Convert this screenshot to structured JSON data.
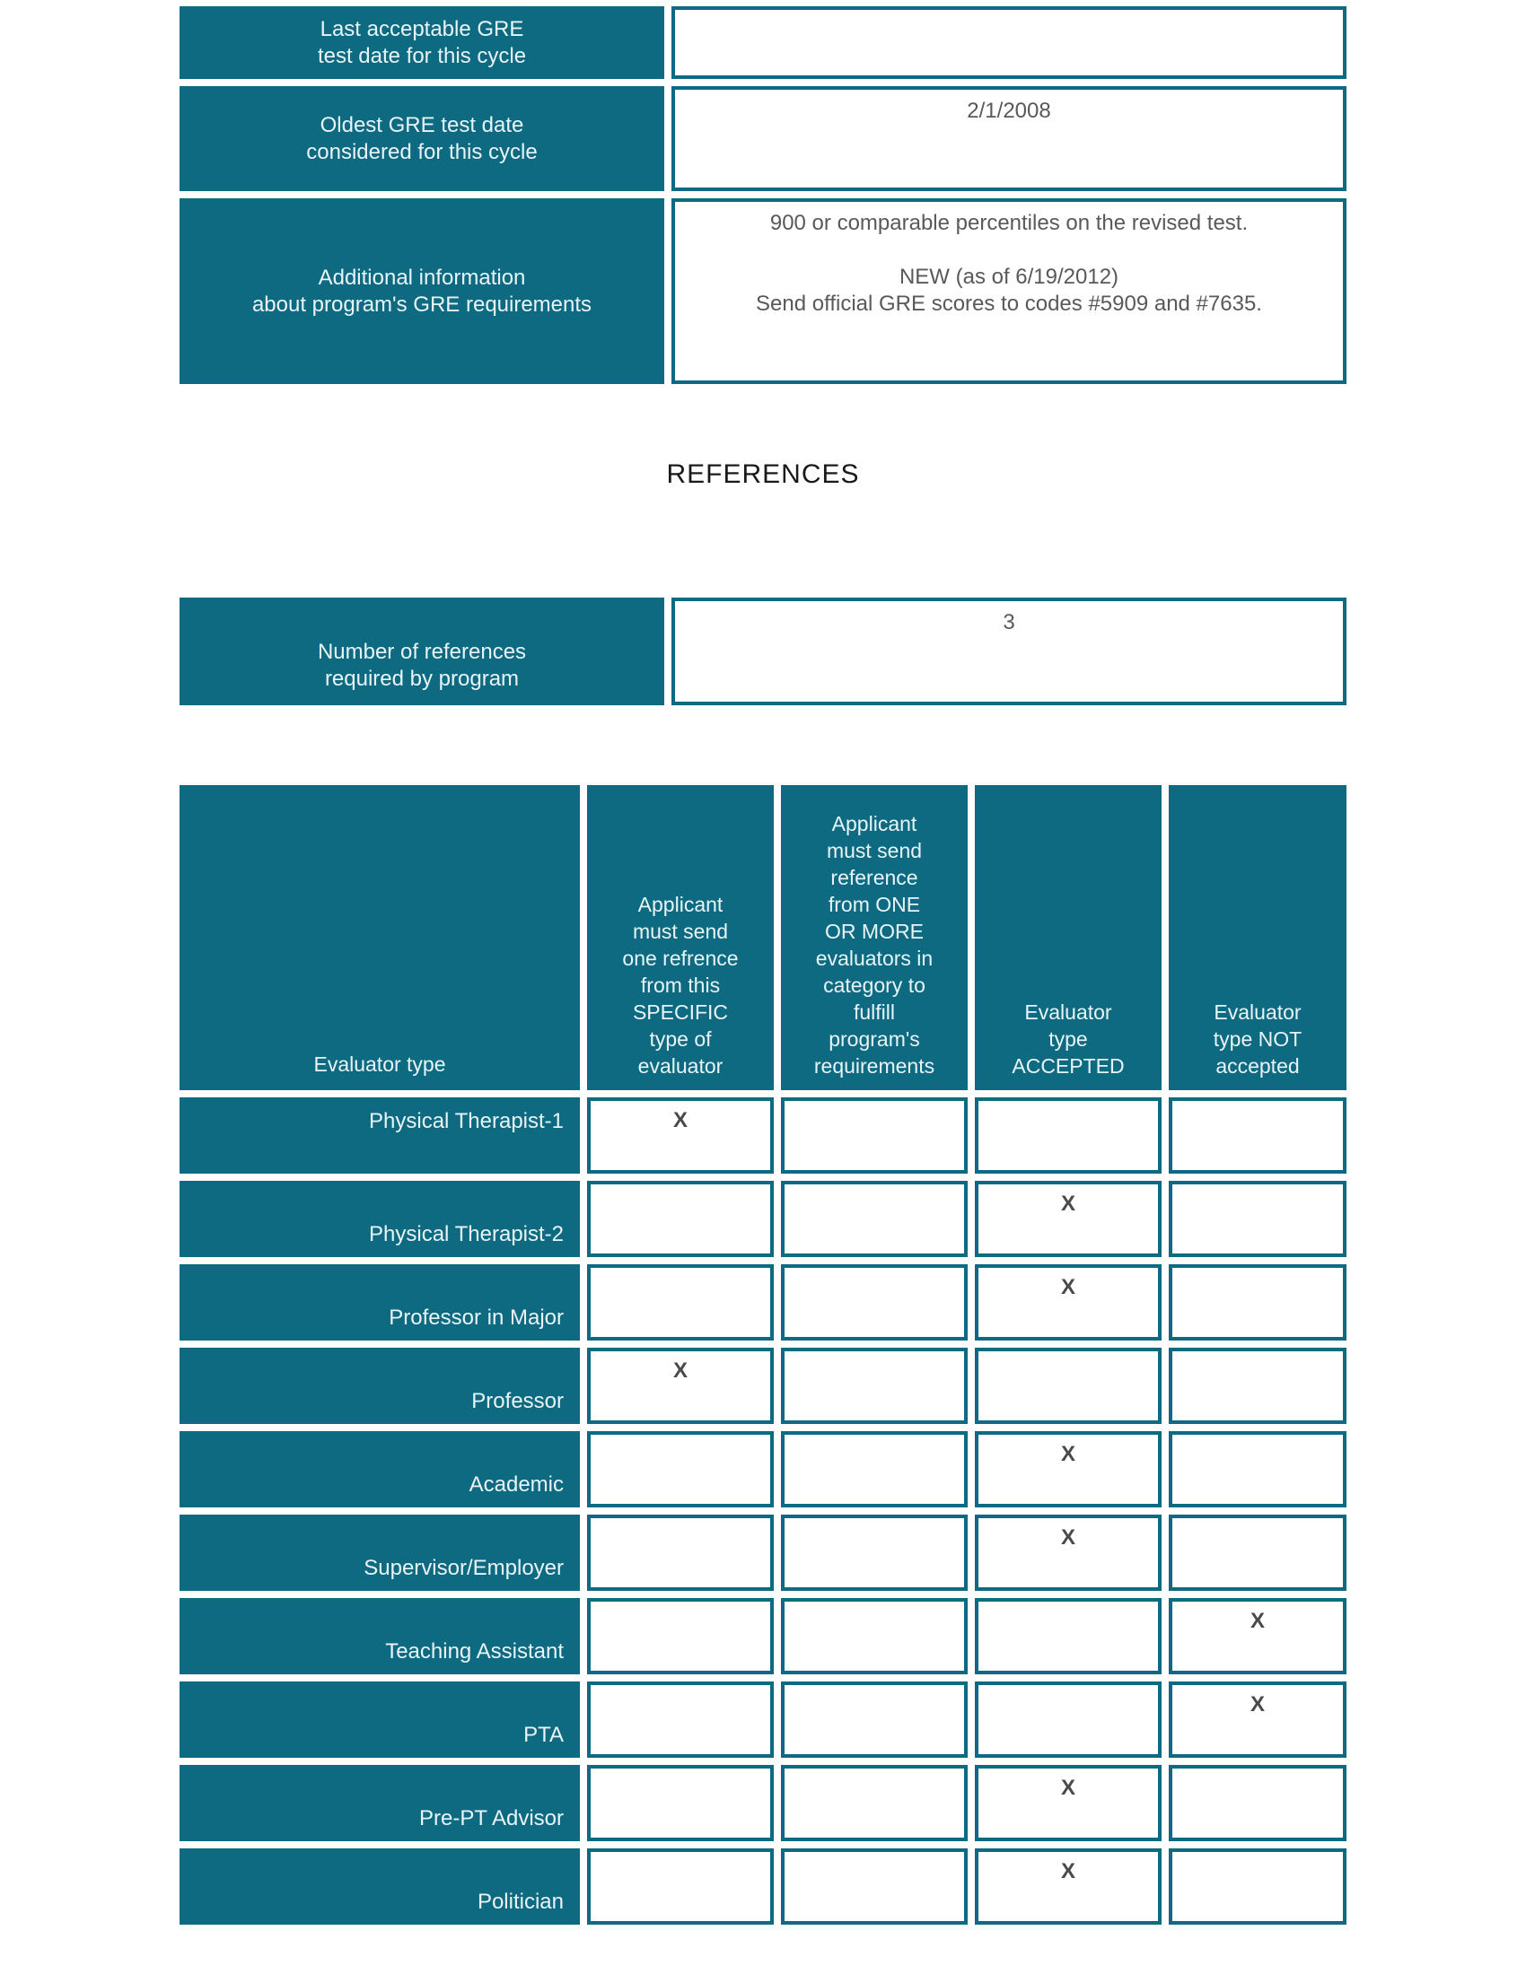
{
  "colors": {
    "teal": "#0E6A80",
    "label_text": "#E8F4F8",
    "value_text": "#58595B",
    "x_mark": "#4A4A4C",
    "heading_text": "#1A1A1A",
    "page_background": "#FFFFFF"
  },
  "gre_table": {
    "rows": [
      {
        "label": "Last acceptable GRE\ntest date for this cycle",
        "value": ""
      },
      {
        "label": "Oldest GRE test date\nconsidered for this cycle",
        "value": "2/1/2008"
      },
      {
        "label": "Additional information\nabout program's GRE requirements",
        "value": "900 or comparable percentiles on the revised test.\n\nNEW (as of 6/19/2012)\nSend official GRE scores to codes #5909 and #7635."
      }
    ]
  },
  "references": {
    "heading": "REFERENCES",
    "count_label": "Number of references\nrequired by program",
    "count_value": "3"
  },
  "evaluator_table": {
    "columns": {
      "evaluator_type": "Evaluator type",
      "specific": "Applicant\nmust send\none refrence\nfrom this\nSPECIFIC\ntype of\nevaluator",
      "one_or_more": "Applicant\nmust send\nreference\nfrom ONE\nOR MORE\nevaluators in\ncategory to\nfulfill\nprogram's\nrequirements",
      "accepted": "Evaluator\ntype\nACCEPTED",
      "not_accepted": "Evaluator\ntype NOT\naccepted"
    },
    "rows": [
      {
        "label": "Physical Therapist-1",
        "label_valign": "top",
        "marks": [
          "X",
          "",
          "",
          ""
        ]
      },
      {
        "label": "Physical Therapist-2",
        "marks": [
          "",
          "",
          "X",
          ""
        ]
      },
      {
        "label": "Professor in Major",
        "marks": [
          "",
          "",
          "X",
          ""
        ]
      },
      {
        "label": "Professor",
        "marks": [
          "X",
          "",
          "",
          ""
        ]
      },
      {
        "label": "Academic",
        "marks": [
          "",
          "",
          "X",
          ""
        ]
      },
      {
        "label": "Supervisor/Employer",
        "marks": [
          "",
          "",
          "X",
          ""
        ]
      },
      {
        "label": "Teaching Assistant",
        "marks": [
          "",
          "",
          "",
          "X"
        ]
      },
      {
        "label": "PTA",
        "marks": [
          "",
          "",
          "",
          "X"
        ]
      },
      {
        "label": "Pre-PT Advisor",
        "marks": [
          "",
          "",
          "X",
          ""
        ]
      },
      {
        "label": "Politician",
        "marks": [
          "",
          "",
          "X",
          ""
        ]
      }
    ]
  }
}
